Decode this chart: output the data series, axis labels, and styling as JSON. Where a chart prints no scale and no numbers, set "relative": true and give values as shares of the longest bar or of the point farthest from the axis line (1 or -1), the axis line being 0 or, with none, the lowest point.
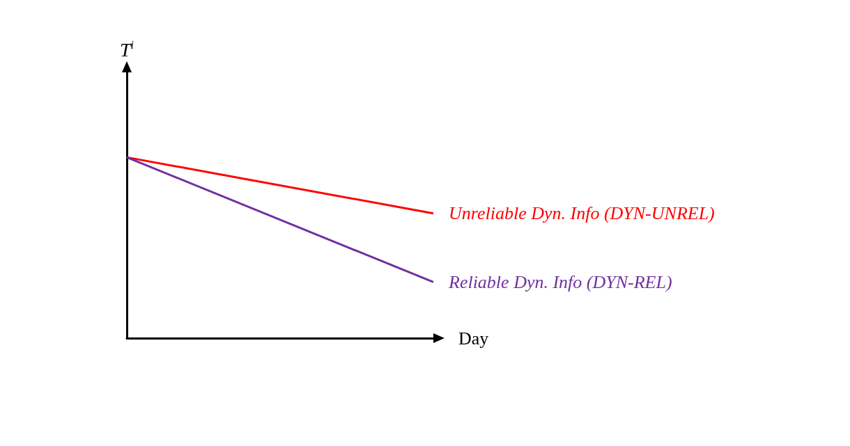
{
  "chart_data": {
    "type": "line",
    "relative": true,
    "ylabel": "T$^{i}$",
    "xlabel": "Day",
    "categories": [
      null,
      null
    ],
    "grid": false,
    "legend": false,
    "marker": "none",
    "series": [
      {
        "name": "Unreliable Dyn. Info (DYN-UNREL)",
        "color": "#ff0000",
        "values": [
          1,
          0.69
        ]
      },
      {
        "name": "Reliable Dyn. Info (DYN-REL)",
        "color": "#7030a0",
        "values": [
          1,
          0.31
        ]
      }
    ]
  }
}
